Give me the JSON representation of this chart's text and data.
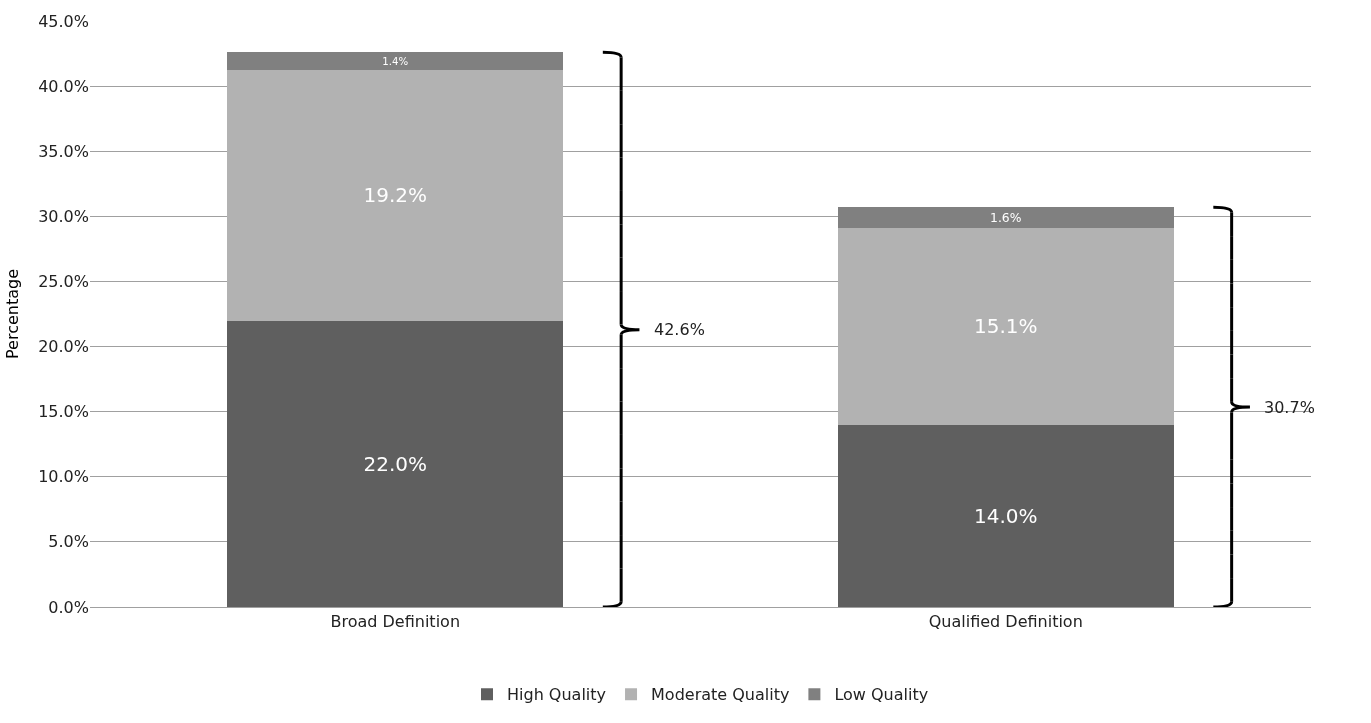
{
  "chart_data": {
    "type": "bar",
    "stacked": true,
    "ylabel": "Percentage",
    "categories": [
      "Broad Definition",
      "Qualified Definition"
    ],
    "series": [
      {
        "name": "High Quality",
        "color": "#5f5f5f",
        "values": [
          22.0,
          14.0
        ],
        "value_labels": [
          "22.0%",
          "14.0%"
        ]
      },
      {
        "name": "Moderate Quality",
        "color": "#b2b2b2",
        "values": [
          19.2,
          15.1
        ],
        "value_labels": [
          "19.2%",
          "15.1%"
        ]
      },
      {
        "name": "Low Quality",
        "color": "#808080",
        "values": [
          1.4,
          1.6
        ],
        "value_labels": [
          "1.4%",
          "1.6%"
        ]
      }
    ],
    "annotations": [
      "42.6%",
      "30.7%"
    ],
    "ylim": [
      0,
      45
    ],
    "yticks": [
      {
        "value": 0,
        "label": "0.0%"
      },
      {
        "value": 5,
        "label": "5.0%"
      },
      {
        "value": 10,
        "label": "10.0%"
      },
      {
        "value": 15,
        "label": "15.0%"
      },
      {
        "value": 20,
        "label": "20.0%"
      },
      {
        "value": 25,
        "label": "25.0%"
      },
      {
        "value": 30,
        "label": "30.0%"
      },
      {
        "value": 35,
        "label": "35.0%"
      },
      {
        "value": 40,
        "label": "40.0%"
      },
      {
        "value": 45,
        "label": "45.0%"
      }
    ],
    "grid": "y",
    "legend": "bottom"
  }
}
